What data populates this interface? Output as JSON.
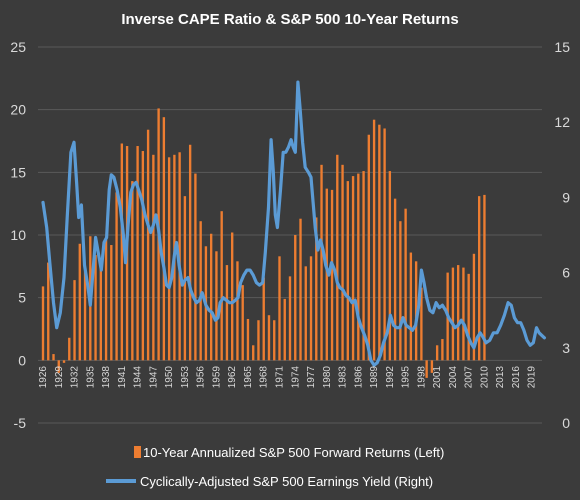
{
  "chart_data": {
    "type": "bar+line",
    "title": "Inverse CAPE Ratio & S&P 500 10-Year Returns",
    "colors": {
      "bars": "#ed7d31",
      "line": "#5b9bd5",
      "background": "#3b3b3b",
      "text": "#ffffff"
    },
    "left_axis": {
      "ylim": [
        -5,
        25
      ],
      "ticks": [
        "-5",
        "0",
        "5",
        "10",
        "15",
        "20",
        "25"
      ]
    },
    "right_axis": {
      "ylim": [
        0,
        15
      ],
      "ticks": [
        "0",
        "3",
        "6",
        "9",
        "12",
        "15"
      ]
    },
    "x": {
      "start": 1926,
      "end": 2020,
      "tick_labels": [
        "1926",
        "1929",
        "1932",
        "1935",
        "1938",
        "1941",
        "1944",
        "1947",
        "1950",
        "1953",
        "1956",
        "1959",
        "1962",
        "1965",
        "1968",
        "1971",
        "1974",
        "1977",
        "1980",
        "1983",
        "1986",
        "1989",
        "1992",
        "1995",
        "1998",
        "2001",
        "2004",
        "2007",
        "2010",
        "2013",
        "2016",
        "2019"
      ]
    },
    "grid": true,
    "legend_position": "bottom",
    "series": [
      {
        "name": "10-Year Annualized S&P 500 Forward Returns (Left)",
        "type": "bar",
        "axis": "left",
        "x": [
          1926,
          1927,
          1928,
          1929,
          1930,
          1931,
          1932,
          1933,
          1934,
          1935,
          1936,
          1937,
          1938,
          1939,
          1940,
          1941,
          1942,
          1943,
          1944,
          1945,
          1946,
          1947,
          1948,
          1949,
          1950,
          1951,
          1952,
          1953,
          1954,
          1955,
          1956,
          1957,
          1958,
          1959,
          1960,
          1961,
          1962,
          1963,
          1964,
          1965,
          1966,
          1967,
          1968,
          1969,
          1970,
          1971,
          1972,
          1973,
          1974,
          1975,
          1976,
          1977,
          1978,
          1979,
          1980,
          1981,
          1982,
          1983,
          1984,
          1985,
          1986,
          1987,
          1988,
          1989,
          1990,
          1991,
          1992,
          1993,
          1994,
          1995,
          1996,
          1997,
          1998,
          1999,
          2000,
          2001,
          2002,
          2003,
          2004,
          2005,
          2006,
          2007,
          2008,
          2009,
          2010
        ],
        "values": [
          5.9,
          7.8,
          0.5,
          -1.0,
          -0.2,
          1.8,
          6.4,
          9.3,
          7.1,
          9.9,
          8.4,
          7.6,
          9.6,
          9.2,
          13.4,
          17.3,
          17.1,
          14.3,
          17.1,
          16.7,
          18.4,
          16.4,
          20.1,
          19.4,
          16.2,
          16.4,
          16.6,
          13.1,
          17.2,
          14.9,
          11.1,
          9.1,
          10.1,
          8.7,
          11.9,
          7.6,
          10.2,
          7.9,
          6.0,
          3.3,
          1.2,
          3.2,
          6.6,
          3.6,
          3.2,
          8.3,
          4.9,
          6.7,
          10.0,
          11.3,
          7.5,
          8.3,
          11.4,
          15.6,
          13.7,
          13.6,
          16.4,
          15.6,
          14.3,
          14.7,
          14.9,
          15.1,
          18.0,
          19.2,
          18.8,
          18.5,
          15.1,
          12.9,
          11.1,
          12.1,
          8.6,
          7.9,
          5.8,
          -1.4,
          -1.0,
          1.2,
          1.7,
          7.0,
          7.4,
          7.6,
          7.4,
          6.9,
          8.5,
          13.1,
          13.2
        ]
      },
      {
        "name": "Cyclically-Adjusted S&P 500 Earnings Yield (Right)",
        "type": "line",
        "axis": "right",
        "points": [
          [
            1926,
            8.8
          ],
          [
            1926.7,
            7.8
          ],
          [
            1927.3,
            6.4
          ],
          [
            1928,
            4.8
          ],
          [
            1928.6,
            3.8
          ],
          [
            1929.3,
            4.4
          ],
          [
            1930,
            5.8
          ],
          [
            1930.6,
            8.2
          ],
          [
            1931.3,
            10.8
          ],
          [
            1931.9,
            11.2
          ],
          [
            1932.4,
            9.6
          ],
          [
            1932.8,
            8.2
          ],
          [
            1933.3,
            8.7
          ],
          [
            1933.9,
            6.3
          ],
          [
            1934.5,
            5.5
          ],
          [
            1935,
            4.7
          ],
          [
            1935.6,
            6.3
          ],
          [
            1936,
            7.4
          ],
          [
            1936.6,
            6.7
          ],
          [
            1937.1,
            6.1
          ],
          [
            1937.6,
            7.2
          ],
          [
            1938.1,
            7.4
          ],
          [
            1938.6,
            9.3
          ],
          [
            1939,
            9.9
          ],
          [
            1939.5,
            9.8
          ],
          [
            1940.1,
            9.3
          ],
          [
            1940.7,
            8.6
          ],
          [
            1941.3,
            7.5
          ],
          [
            1941.7,
            6.4
          ],
          [
            1942.2,
            7.9
          ],
          [
            1942.7,
            9.2
          ],
          [
            1943.2,
            9.5
          ],
          [
            1943.7,
            9.6
          ],
          [
            1944.2,
            9.3
          ],
          [
            1944.8,
            8.9
          ],
          [
            1945.4,
            8.3
          ],
          [
            1946,
            7.9
          ],
          [
            1946.5,
            7.6
          ],
          [
            1947,
            7.9
          ],
          [
            1947.5,
            8.3
          ],
          [
            1948,
            7.7
          ],
          [
            1948.5,
            6.8
          ],
          [
            1949,
            6.2
          ],
          [
            1949.5,
            5.5
          ],
          [
            1950,
            5.4
          ],
          [
            1950.5,
            5.8
          ],
          [
            1951,
            6.7
          ],
          [
            1951.4,
            7.2
          ],
          [
            1951.9,
            6.3
          ],
          [
            1952.5,
            5.5
          ],
          [
            1953,
            5.7
          ],
          [
            1953.6,
            5.8
          ],
          [
            1954.1,
            5.3
          ],
          [
            1954.7,
            5.0
          ],
          [
            1955.2,
            4.8
          ],
          [
            1955.8,
            4.9
          ],
          [
            1956.3,
            5.2
          ],
          [
            1957,
            4.7
          ],
          [
            1957.6,
            4.5
          ],
          [
            1958.2,
            4.4
          ],
          [
            1958.8,
            4.1
          ],
          [
            1959.3,
            4.2
          ],
          [
            1959.7,
            4.8
          ],
          [
            1960.3,
            5.0
          ],
          [
            1960.9,
            4.9
          ],
          [
            1961.5,
            4.8
          ],
          [
            1962,
            4.8
          ],
          [
            1962.6,
            4.9
          ],
          [
            1963.1,
            5.0
          ],
          [
            1963.6,
            5.6
          ],
          [
            1964.2,
            5.9
          ],
          [
            1964.8,
            6.1
          ],
          [
            1965.4,
            6.1
          ],
          [
            1966,
            5.9
          ],
          [
            1966.6,
            5.6
          ],
          [
            1967.2,
            5.5
          ],
          [
            1967.8,
            5.6
          ],
          [
            1968.3,
            6.8
          ],
          [
            1968.9,
            8.6
          ],
          [
            1969.4,
            11.3
          ],
          [
            1969.8,
            10.1
          ],
          [
            1970.2,
            8.3
          ],
          [
            1970.6,
            7.8
          ],
          [
            1971.2,
            9.3
          ],
          [
            1971.7,
            10.8
          ],
          [
            1972.2,
            10.8
          ],
          [
            1972.7,
            11.0
          ],
          [
            1973.2,
            11.3
          ],
          [
            1973.6,
            11.0
          ],
          [
            1974,
            10.8
          ],
          [
            1974.5,
            13.6
          ],
          [
            1974.9,
            12.6
          ],
          [
            1975.4,
            11.2
          ],
          [
            1975.9,
            10.2
          ],
          [
            1976.5,
            10.0
          ],
          [
            1977,
            9.8
          ],
          [
            1977.4,
            8.8
          ],
          [
            1977.8,
            7.8
          ],
          [
            1978.3,
            6.9
          ],
          [
            1978.8,
            7.3
          ],
          [
            1979.3,
            6.9
          ],
          [
            1979.8,
            6.3
          ],
          [
            1980.4,
            5.9
          ],
          [
            1980.9,
            6.4
          ],
          [
            1981.5,
            6.1
          ],
          [
            1982,
            5.6
          ],
          [
            1982.5,
            5.4
          ],
          [
            1983.1,
            5.3
          ],
          [
            1983.6,
            5.1
          ],
          [
            1984.2,
            5.0
          ],
          [
            1984.8,
            4.8
          ],
          [
            1985.4,
            4.9
          ],
          [
            1986,
            4.2
          ],
          [
            1986.6,
            3.8
          ],
          [
            1987.2,
            3.5
          ],
          [
            1987.8,
            3.1
          ],
          [
            1988.4,
            2.5
          ],
          [
            1989,
            2.3
          ],
          [
            1989.6,
            2.4
          ],
          [
            1990.2,
            2.7
          ],
          [
            1990.8,
            3.2
          ],
          [
            1991.5,
            3.6
          ],
          [
            1992.1,
            4.3
          ],
          [
            1992.7,
            3.9
          ],
          [
            1993.3,
            3.8
          ],
          [
            1993.9,
            3.8
          ],
          [
            1994.5,
            4.2
          ],
          [
            1995.1,
            3.9
          ],
          [
            1995.7,
            3.8
          ],
          [
            1996.3,
            3.7
          ],
          [
            1996.9,
            3.9
          ],
          [
            1997.5,
            4.7
          ],
          [
            1998,
            6.1
          ],
          [
            1998.5,
            5.6
          ],
          [
            1999,
            5.0
          ],
          [
            1999.6,
            4.5
          ],
          [
            2000.2,
            4.4
          ],
          [
            2000.8,
            4.8
          ],
          [
            2001.4,
            4.6
          ],
          [
            2002,
            4.7
          ],
          [
            2002.6,
            4.5
          ],
          [
            2003.2,
            4.2
          ],
          [
            2003.8,
            4.0
          ],
          [
            2004.4,
            3.8
          ],
          [
            2005,
            3.9
          ],
          [
            2005.6,
            4.1
          ],
          [
            2006.2,
            3.9
          ],
          [
            2006.8,
            3.5
          ],
          [
            2007.4,
            3.2
          ],
          [
            2008,
            3.0
          ],
          [
            2008.6,
            3.4
          ],
          [
            2009.2,
            3.6
          ],
          [
            2009.8,
            3.4
          ],
          [
            2010.3,
            3.2
          ],
          [
            2011,
            3.3
          ],
          [
            2011.7,
            3.6
          ],
          [
            2012.4,
            3.6
          ],
          [
            2013.1,
            3.9
          ],
          [
            2013.8,
            4.3
          ],
          [
            2014.5,
            4.8
          ],
          [
            2015.1,
            4.7
          ],
          [
            2015.7,
            4.2
          ],
          [
            2016.3,
            4.0
          ],
          [
            2016.9,
            4.0
          ],
          [
            2017.5,
            3.7
          ],
          [
            2018.1,
            3.3
          ],
          [
            2018.7,
            3.1
          ],
          [
            2019.3,
            3.2
          ],
          [
            2019.9,
            3.8
          ],
          [
            2020.4,
            3.6
          ],
          [
            2020.9,
            3.5
          ],
          [
            2021.4,
            3.4
          ]
        ]
      }
    ]
  }
}
